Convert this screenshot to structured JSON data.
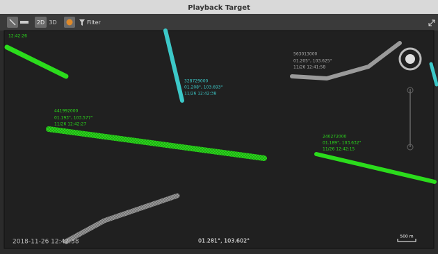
{
  "window": {
    "title": "Playback Target"
  },
  "toolbar": {
    "mode_2d": "2D",
    "mode_3d": "3D",
    "filter": "Filter"
  },
  "tracks": [
    {
      "lines": [
        "12:42:26"
      ]
    },
    {
      "lines": [
        "328729000",
        "01.208°, 103.693°",
        "11/26 12:42:38"
      ]
    },
    {
      "lines": [
        "441992000",
        "01.193°, 103.577°",
        "11/26 12:42:27"
      ]
    },
    {
      "lines": [
        "563013000",
        "01.205°, 103.625°",
        "11/26 12:41:58"
      ]
    },
    {
      "lines": [
        "240272000",
        "01.189°, 103.632°",
        "11/26 12:42:15"
      ]
    }
  ],
  "status": {
    "time": "2018-11-26 12:42:38",
    "cursor": "01.281°, 103.602°",
    "scale": "500 m"
  }
}
